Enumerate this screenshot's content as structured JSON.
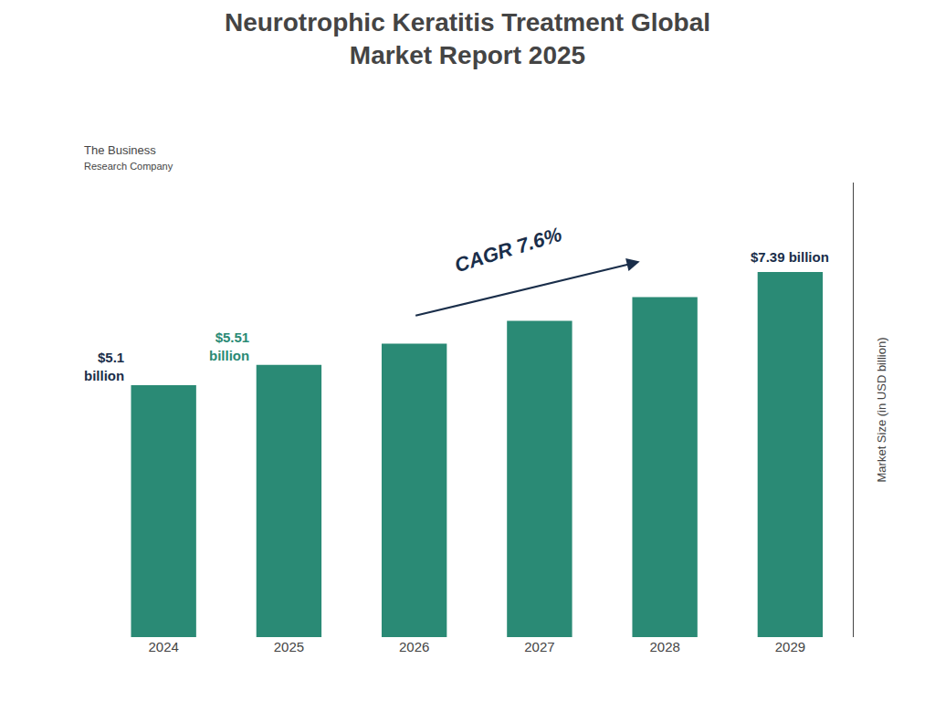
{
  "chart_data": {
    "type": "bar",
    "title": "Neurotrophic Keratitis Treatment Global\nMarket Report 2025",
    "categories": [
      "2024",
      "2025",
      "2026",
      "2027",
      "2028",
      "2029"
    ],
    "values": [
      5.1,
      5.51,
      5.94,
      6.4,
      6.88,
      7.39
    ],
    "color": "#2a8a75",
    "ylabel": "Market Size (in USD billion)",
    "ylim": [
      0,
      9.2
    ],
    "grid": false,
    "tick_labels": "x",
    "annotations": [
      {
        "text": "$5.1\nbillion",
        "category": "2024",
        "value": 5.1,
        "color": "#1a2e4a"
      },
      {
        "text": "$5.51\nbillion",
        "category": "2025",
        "value": 5.51,
        "color": "#2a8a75"
      },
      {
        "text": "$7.39 billion",
        "category": "2029",
        "value": 7.39,
        "color": "#1a2e4a"
      },
      {
        "text": "CAGR 7.6%",
        "color": "#1a2e4a"
      },
      {
        "text": "The Business"
      },
      {
        "text": "Research Company"
      }
    ]
  }
}
